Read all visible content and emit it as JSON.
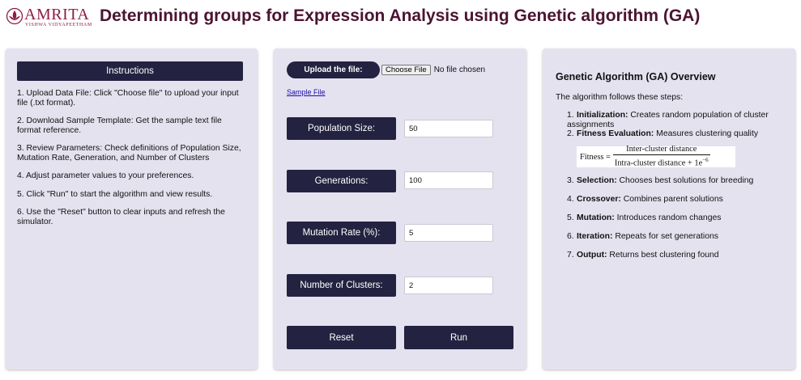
{
  "header": {
    "logo_text": "AMRITA",
    "logo_subtext": "VISHWA VIDYAPEETHAM",
    "title": "Determining groups for Expression Analysis using Genetic algorithm (GA)"
  },
  "instructions": {
    "heading": "Instructions",
    "items": [
      "1. Upload Data File: Click \"Choose file\" to upload your input file (.txt format).",
      "2. Download Sample Template: Get the sample text file format reference.",
      "3. Review Parameters: Check definitions of Population Size, Mutation Rate, Generation, and Number of Clusters",
      "4. Adjust parameter values to your preferences.",
      "5. Click \"Run\" to start the algorithm and view results.",
      "6. Use the \"Reset\" button to clear inputs and refresh the simulator."
    ]
  },
  "upload": {
    "label": "Upload the file:",
    "choose_label": "Choose File",
    "status": "No file chosen",
    "sample_link": "Sample File"
  },
  "params": [
    {
      "label": "Population Size:",
      "value": "50"
    },
    {
      "label": "Generations:",
      "value": "100"
    },
    {
      "label": "Mutation Rate (%):",
      "value": "5"
    },
    {
      "label": "Number of Clusters:",
      "value": "2"
    }
  ],
  "actions": {
    "reset_label": "Reset",
    "run_label": "Run"
  },
  "overview": {
    "title": "Genetic Algorithm (GA) Overview",
    "intro": "The algorithm follows these steps:",
    "steps": [
      {
        "num": "1.",
        "term": "Initialization:",
        "desc": "Creates random population of cluster assignments"
      },
      {
        "num": "2.",
        "term": "Fitness Evaluation:",
        "desc": "Measures clustering quality"
      },
      {
        "num": "3.",
        "term": "Selection:",
        "desc": "Chooses best solutions for breeding"
      },
      {
        "num": "4.",
        "term": "Crossover:",
        "desc": "Combines parent solutions"
      },
      {
        "num": "5.",
        "term": "Mutation:",
        "desc": "Introduces random changes"
      },
      {
        "num": "6.",
        "term": "Iteration:",
        "desc": "Repeats for set generations"
      },
      {
        "num": "7.",
        "term": "Output:",
        "desc": "Returns best clustering found"
      }
    ],
    "formula": {
      "label": "Fitness =",
      "numerator": "Inter-cluster distance",
      "denominator": "Intra-cluster distance + 1e",
      "exponent": "−6"
    }
  },
  "colors": {
    "brand": "#8f1d3f",
    "title": "#4b1431",
    "button": "#232240",
    "panel": "#e4e2ef"
  }
}
